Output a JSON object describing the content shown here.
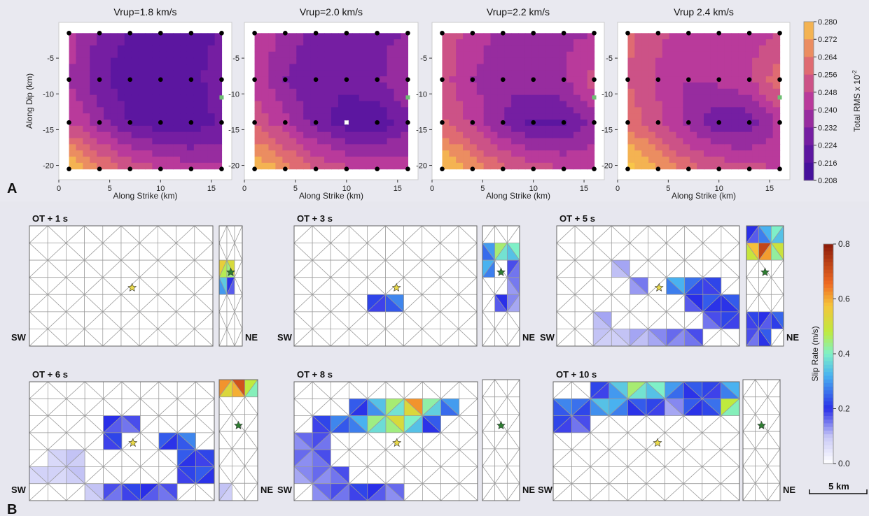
{
  "chart_data": [
    {
      "type": "heatmap",
      "panel_label": "A",
      "xlabel": "Along Strike (km)",
      "ylabel": "Along Dip (km)",
      "xticks": [
        0,
        5,
        10,
        15
      ],
      "yticks": [
        -5,
        -10,
        -15,
        -20
      ],
      "xlim": [
        0,
        17
      ],
      "ylim": [
        -22,
        0
      ],
      "colorbar": {
        "label": "Total RMS x 10",
        "label_exponent": "-2",
        "ticks": [
          "0.280",
          "0.272",
          "0.264",
          "0.256",
          "0.248",
          "0.240",
          "0.232",
          "0.224",
          "0.216",
          "0.208"
        ],
        "min": 0.208,
        "max": 0.28
      },
      "colors": {
        "low": "#3b0f9a",
        "mid": "#b93a9b",
        "high": "#f8c64a",
        "hypocenter_marker": "#ffffff",
        "station_marker": "#6fbf73"
      },
      "sample_points": {
        "x": [
          1,
          4,
          7,
          10,
          13,
          16
        ],
        "y": [
          -1.5,
          -8,
          -14,
          -20.5
        ]
      },
      "series": [
        {
          "title": "Vrup=1.8 km/s",
          "rms": [
            [
              0.24,
              0.226,
              0.219,
              0.216,
              0.218,
              0.22
            ],
            [
              0.236,
              0.222,
              0.214,
              0.213,
              0.216,
              0.226
            ],
            [
              0.245,
              0.232,
              0.22,
              0.214,
              0.214,
              0.222
            ],
            [
              0.276,
              0.262,
              0.25,
              0.244,
              0.24,
              0.238
            ]
          ]
        },
        {
          "title": "Vrup=2.0 km/s",
          "rms": [
            [
              0.245,
              0.232,
              0.226,
              0.224,
              0.226,
              0.228
            ],
            [
              0.242,
              0.228,
              0.222,
              0.222,
              0.226,
              0.236
            ],
            [
              0.25,
              0.238,
              0.224,
              0.216,
              0.214,
              0.226
            ],
            [
              0.278,
              0.264,
              0.252,
              0.246,
              0.242,
              0.24
            ]
          ]
        },
        {
          "title": "Vrup=2.2 km/s",
          "rms": [
            [
              0.25,
              0.24,
              0.234,
              0.232,
              0.234,
              0.236
            ],
            [
              0.248,
              0.236,
              0.23,
              0.232,
              0.236,
              0.248
            ],
            [
              0.254,
              0.242,
              0.228,
              0.218,
              0.218,
              0.232
            ],
            [
              0.278,
              0.266,
              0.254,
              0.248,
              0.244,
              0.242
            ]
          ]
        },
        {
          "title": "Vrup  2.4 km/s",
          "rms": [
            [
              0.254,
              0.246,
              0.24,
              0.238,
              0.24,
              0.244
            ],
            [
              0.252,
              0.242,
              0.236,
              0.238,
              0.244,
              0.258
            ],
            [
              0.258,
              0.246,
              0.232,
              0.222,
              0.222,
              0.238
            ],
            [
              0.28,
              0.268,
              0.256,
              0.25,
              0.246,
              0.244
            ]
          ]
        }
      ]
    },
    {
      "type": "heatmap",
      "panel_label": "B",
      "colorbar": {
        "label": "Slip Rate (m/s)",
        "ticks": [
          "0.8",
          "0.6",
          "0.4",
          "0.2",
          "0.0"
        ],
        "min": 0.0,
        "max": 0.8
      },
      "colors": {
        "zero": "#ffffff",
        "low": "#2a2fe8",
        "mid": "#bfea3e",
        "high": "#8b1a0a",
        "mesh": "#9a9a9a",
        "hypocenter_star": "#e8d84a",
        "side_star": "#2e7d32"
      },
      "mesh": {
        "main_cols": 10,
        "main_rows": 7,
        "side_cols": 3,
        "side_rows": 7
      },
      "hypocenter_cell": [
        5,
        4
      ],
      "side_star_cell": [
        1,
        3
      ],
      "fault_end_labels": {
        "left": "SW",
        "right": "NE"
      },
      "scale_bar_label": "5 km",
      "snapshots": [
        {
          "label": "OT + 1 s",
          "main": [],
          "side": [
            [
              2,
              1,
              0.52
            ],
            [
              2,
              0,
              0.55
            ],
            [
              3,
              1,
              0.2
            ],
            [
              3,
              0,
              0.35
            ]
          ]
        },
        {
          "label": "OT + 3 s",
          "main": [
            [
              4,
              4,
              0.22
            ],
            [
              4,
              5,
              0.28
            ]
          ],
          "side": [
            [
              1,
              0,
              0.3
            ],
            [
              1,
              1,
              0.45
            ],
            [
              1,
              2,
              0.4
            ],
            [
              2,
              0,
              0.32
            ],
            [
              2,
              2,
              0.18
            ],
            [
              3,
              2,
              0.15
            ],
            [
              4,
              1,
              0.2
            ],
            [
              4,
              2,
              0.14
            ]
          ]
        },
        {
          "label": "OT + 5 s",
          "main": [
            [
              2,
              3,
              0.12
            ],
            [
              3,
              4,
              0.15
            ],
            [
              3,
              6,
              0.32
            ],
            [
              3,
              7,
              0.26
            ],
            [
              3,
              8,
              0.22
            ],
            [
              4,
              7,
              0.2
            ],
            [
              4,
              8,
              0.24
            ],
            [
              4,
              9,
              0.24
            ],
            [
              5,
              2,
              0.12
            ],
            [
              5,
              8,
              0.18
            ],
            [
              5,
              9,
              0.22
            ],
            [
              6,
              2,
              0.1
            ],
            [
              6,
              3,
              0.1
            ],
            [
              6,
              4,
              0.12
            ],
            [
              6,
              5,
              0.14
            ],
            [
              6,
              6,
              0.16
            ],
            [
              6,
              7,
              0.18
            ]
          ],
          "side": [
            [
              0,
              0,
              0.2
            ],
            [
              0,
              1,
              0.32
            ],
            [
              0,
              2,
              0.4
            ],
            [
              1,
              0,
              0.58
            ],
            [
              1,
              1,
              0.72
            ],
            [
              1,
              2,
              0.5
            ],
            [
              5,
              0,
              0.22
            ],
            [
              5,
              1,
              0.2
            ],
            [
              5,
              2,
              0.25
            ],
            [
              6,
              0,
              0.18
            ],
            [
              6,
              1,
              0.24
            ]
          ]
        },
        {
          "label": "OT + 6 s",
          "main": [
            [
              2,
              4,
              0.2
            ],
            [
              2,
              5,
              0.18
            ],
            [
              3,
              4,
              0.22
            ],
            [
              3,
              7,
              0.24
            ],
            [
              3,
              8,
              0.28
            ],
            [
              4,
              1,
              0.08
            ],
            [
              4,
              2,
              0.1
            ],
            [
              4,
              8,
              0.24
            ],
            [
              4,
              9,
              0.22
            ],
            [
              5,
              0,
              0.08
            ],
            [
              5,
              1,
              0.08
            ],
            [
              5,
              2,
              0.1
            ],
            [
              5,
              8,
              0.22
            ],
            [
              5,
              9,
              0.24
            ],
            [
              6,
              3,
              0.1
            ],
            [
              6,
              4,
              0.18
            ],
            [
              6,
              5,
              0.22
            ],
            [
              6,
              6,
              0.2
            ],
            [
              6,
              7,
              0.18
            ]
          ],
          "side": [
            [
              0,
              0,
              0.62
            ],
            [
              0,
              1,
              0.7
            ],
            [
              0,
              2,
              0.48
            ],
            [
              6,
              0,
              0.1
            ]
          ]
        },
        {
          "label": "OT + 8 s",
          "main": [
            [
              1,
              3,
              0.24
            ],
            [
              1,
              4,
              0.34
            ],
            [
              1,
              5,
              0.45
            ],
            [
              1,
              6,
              0.62
            ],
            [
              1,
              7,
              0.42
            ],
            [
              1,
              8,
              0.3
            ],
            [
              2,
              1,
              0.22
            ],
            [
              2,
              2,
              0.28
            ],
            [
              2,
              3,
              0.32
            ],
            [
              2,
              4,
              0.44
            ],
            [
              2,
              5,
              0.52
            ],
            [
              2,
              6,
              0.4
            ],
            [
              2,
              7,
              0.24
            ],
            [
              3,
              0,
              0.16
            ],
            [
              3,
              1,
              0.18
            ],
            [
              4,
              0,
              0.16
            ],
            [
              4,
              1,
              0.18
            ],
            [
              5,
              0,
              0.14
            ],
            [
              5,
              1,
              0.16
            ],
            [
              5,
              2,
              0.18
            ],
            [
              6,
              1,
              0.16
            ],
            [
              6,
              2,
              0.18
            ],
            [
              6,
              3,
              0.22
            ],
            [
              6,
              4,
              0.2
            ],
            [
              6,
              5,
              0.16
            ]
          ],
          "side": []
        },
        {
          "label": "OT + 10 s",
          "main": [
            [
              0,
              2,
              0.22
            ],
            [
              0,
              3,
              0.35
            ],
            [
              0,
              4,
              0.45
            ],
            [
              0,
              5,
              0.4
            ],
            [
              0,
              6,
              0.3
            ],
            [
              0,
              7,
              0.24
            ],
            [
              0,
              8,
              0.22
            ],
            [
              0,
              9,
              0.32
            ],
            [
              1,
              0,
              0.28
            ],
            [
              1,
              1,
              0.26
            ],
            [
              1,
              2,
              0.34
            ],
            [
              1,
              3,
              0.32
            ],
            [
              1,
              4,
              0.24
            ],
            [
              1,
              5,
              0.22
            ],
            [
              1,
              6,
              0.14
            ],
            [
              1,
              7,
              0.24
            ],
            [
              1,
              8,
              0.26
            ],
            [
              1,
              9,
              0.48
            ],
            [
              2,
              0,
              0.22
            ],
            [
              2,
              1,
              0.18
            ]
          ],
          "side": []
        }
      ]
    }
  ]
}
